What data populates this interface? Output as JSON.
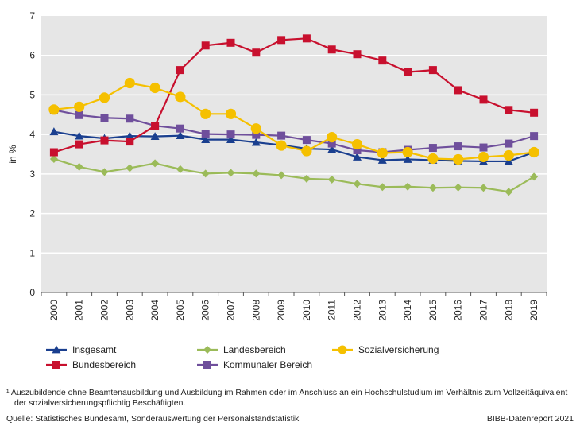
{
  "chart_data": {
    "type": "line",
    "ylabel": "in %",
    "ylim": [
      0,
      7
    ],
    "yticks": [
      "0",
      "1",
      "2",
      "3",
      "4",
      "5",
      "6",
      "7"
    ],
    "categories": [
      "2000",
      "2001",
      "2002",
      "2003",
      "2004",
      "2005",
      "2006",
      "2007",
      "2008",
      "2009",
      "2010",
      "2011",
      "2012",
      "2013",
      "2014",
      "2015",
      "2016",
      "2017",
      "2018",
      "2019"
    ],
    "grid": true,
    "legend_position": "bottom",
    "series": [
      {
        "name": "Insgesamt",
        "color": "#1a3f8f",
        "marker": "triangle",
        "values": [
          4.07,
          3.96,
          3.9,
          3.96,
          3.95,
          3.97,
          3.87,
          3.87,
          3.8,
          3.73,
          3.64,
          3.62,
          3.43,
          3.35,
          3.37,
          3.35,
          3.33,
          3.32,
          3.32,
          3.55
        ]
      },
      {
        "name": "Bundesbereich",
        "color": "#c8102e",
        "marker": "square",
        "values": [
          3.55,
          3.75,
          3.85,
          3.82,
          4.22,
          5.63,
          6.25,
          6.32,
          6.07,
          6.39,
          6.43,
          6.15,
          6.03,
          5.87,
          5.58,
          5.63,
          5.12,
          4.88,
          4.62,
          4.55
        ]
      },
      {
        "name": "Landesbereich",
        "color": "#9bbb59",
        "marker": "diamond",
        "values": [
          3.38,
          3.18,
          3.05,
          3.15,
          3.27,
          3.12,
          3.01,
          3.03,
          3.01,
          2.97,
          2.88,
          2.86,
          2.75,
          2.67,
          2.68,
          2.65,
          2.66,
          2.65,
          2.55,
          2.93
        ]
      },
      {
        "name": "Kommunaler Bereich",
        "color": "#6f4f9c",
        "marker": "square",
        "values": [
          4.62,
          4.49,
          4.42,
          4.4,
          4.22,
          4.15,
          4.01,
          4.0,
          3.99,
          3.97,
          3.86,
          3.77,
          3.6,
          3.55,
          3.61,
          3.66,
          3.7,
          3.67,
          3.77,
          3.96
        ]
      },
      {
        "name": "Sozialversicherung",
        "color": "#f5c000",
        "marker": "circle",
        "values": [
          4.63,
          4.7,
          4.93,
          5.3,
          5.18,
          4.95,
          4.52,
          4.52,
          4.15,
          3.72,
          3.58,
          3.93,
          3.75,
          3.53,
          3.55,
          3.39,
          3.37,
          3.43,
          3.47,
          3.55
        ]
      }
    ]
  },
  "footnote": {
    "line1": "¹ Auszubildende ohne Beamtenausbildung und Ausbildung im Rahmen oder im Anschluss an ein Hochschulstudium im Verhältnis zum Vollzeitäquivalent",
    "line2": "der sozialversicherungspflichtig Beschäftigten."
  },
  "source": "Quelle: Statistisches Bundesamt, Sonderauswertung der Personalstandstatistik",
  "credit": "BIBB-Datenreport 2021"
}
